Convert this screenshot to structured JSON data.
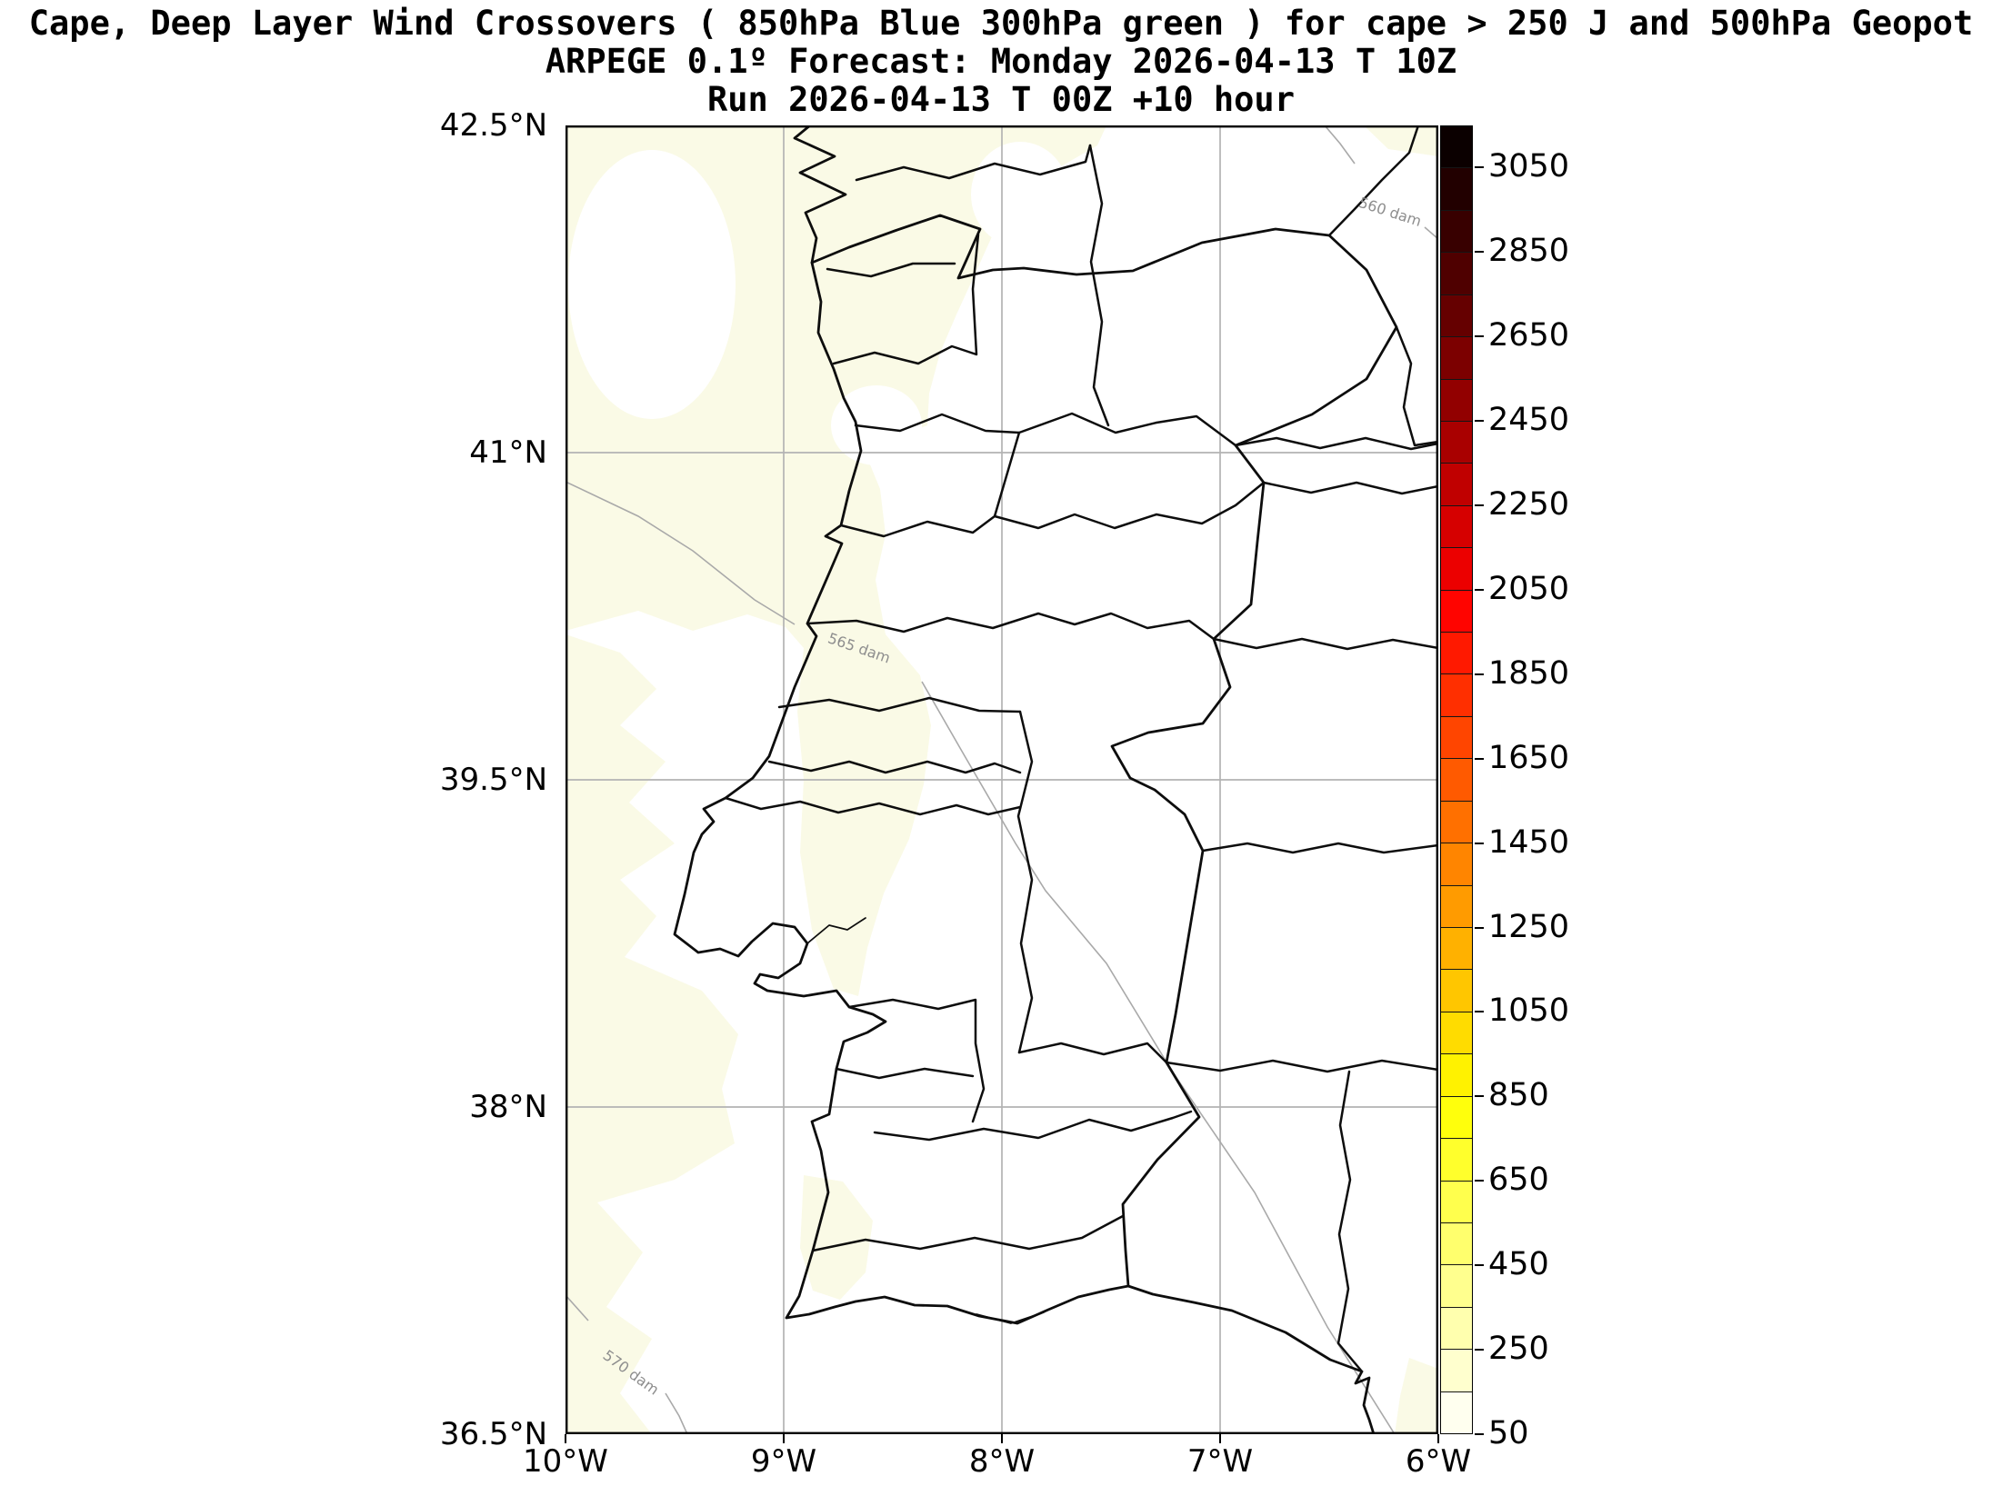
{
  "title": {
    "line1": "Cape, Deep Layer Wind Crossovers ( 850hPa Blue 300hPa green ) for cape > 250 J and 500hPa Geopot",
    "line2": "ARPEGE 0.1º Forecast: Monday 2026-04-13 T 10Z",
    "line3": "Run 2026-04-13 T 00Z +10 hour"
  },
  "map": {
    "x_tick_labels": [
      "10°W",
      "9°W",
      "8°W",
      "7°W",
      "6°W"
    ],
    "y_tick_labels": [
      "42.5°N",
      "41°N",
      "39.5°N",
      "38°N",
      "36.5°N"
    ],
    "contour_labels": [
      "560 dam",
      "565 dam",
      "570 dam"
    ],
    "colors": {
      "grid": "#b3b3b3",
      "contour": "#a9a9a9",
      "contour_label": "#8e8e8e",
      "boundary": "#0d0d0d",
      "cape_fill": "#fafae6"
    }
  },
  "colorbar": {
    "units": "J",
    "min": 50,
    "max": 3150,
    "segment_step": 100,
    "tick_values": [
      50,
      250,
      450,
      650,
      850,
      1050,
      1250,
      1450,
      1650,
      1850,
      2050,
      2250,
      2450,
      2650,
      2850,
      3050
    ],
    "segment_colors": [
      "#ffffef",
      "#ffffce",
      "#ffffae",
      "#ffff8e",
      "#ffff6d",
      "#ffff4d",
      "#ffff2c",
      "#ffff0c",
      "#fff200",
      "#ffdc00",
      "#ffc600",
      "#ffb100",
      "#ff9b00",
      "#ff8500",
      "#ff7000",
      "#ff5a00",
      "#ff4500",
      "#ff2f00",
      "#ff1900",
      "#ff0400",
      "#ec0000",
      "#d60000",
      "#c00000",
      "#a90000",
      "#920000",
      "#7c0000",
      "#650000",
      "#4f0000",
      "#380000",
      "#220000",
      "#0b0000"
    ]
  }
}
